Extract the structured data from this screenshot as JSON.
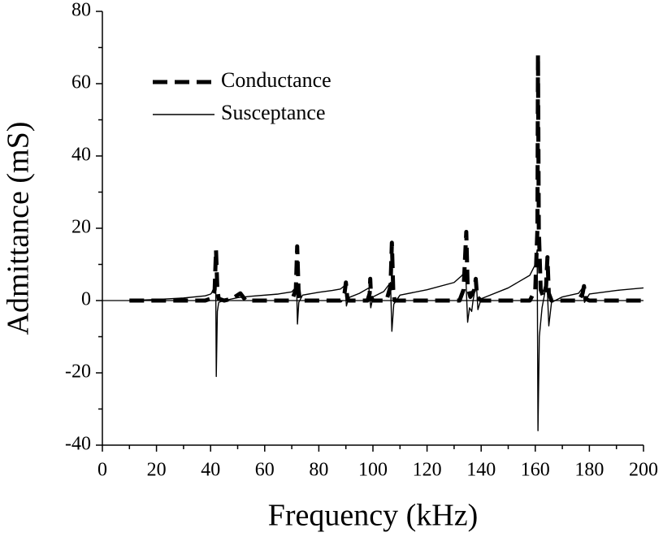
{
  "chart_data": {
    "type": "line",
    "x_label": "Frequency (kHz)",
    "y_label": "Admittance (mS)",
    "xlim": [
      0,
      200
    ],
    "xticks": [
      0,
      20,
      40,
      60,
      80,
      100,
      120,
      140,
      160,
      180,
      200
    ],
    "ylim": [
      -40,
      80
    ],
    "yticks": [
      -40,
      -20,
      0,
      20,
      40,
      60,
      80
    ],
    "legend": "upper left",
    "series": [
      {
        "name": "Conductance",
        "color": "#000000",
        "style": "dashed",
        "x": [
          10,
          38,
          40,
          41.5,
          42,
          42.5,
          43,
          45,
          48,
          51,
          53,
          70,
          71.5,
          72,
          72.5,
          73,
          88,
          89.5,
          90,
          90.5,
          91,
          98,
          98.8,
          99,
          99.3,
          100,
          105,
          106.5,
          107,
          107.5,
          108,
          132,
          133.5,
          134.5,
          135,
          136,
          137.5,
          138,
          138.5,
          140,
          158,
          160,
          160.8,
          161,
          161.3,
          162,
          163,
          164,
          164.5,
          165,
          166,
          176,
          177.5,
          178,
          178.5,
          180,
          200
        ],
        "values": [
          0,
          0,
          0.5,
          3,
          14,
          3,
          0.5,
          0,
          0.5,
          2,
          0,
          0,
          3,
          15,
          3,
          0,
          0,
          2,
          5,
          1,
          0,
          0,
          2,
          6,
          1,
          0,
          0,
          4,
          16,
          3,
          0,
          0,
          3,
          19,
          4,
          1,
          3,
          6,
          1,
          0,
          0,
          3,
          20,
          68,
          20,
          3,
          1,
          4,
          12,
          2,
          0,
          0,
          2,
          4,
          0.5,
          0,
          0
        ]
      },
      {
        "name": "Susceptance",
        "color": "#000000",
        "style": "solid",
        "x": [
          10,
          20,
          30,
          38,
          40,
          41.5,
          41.9,
          42.1,
          42.5,
          43,
          45,
          50,
          55,
          65,
          70,
          71.3,
          71.8,
          72.1,
          72.6,
          74,
          80,
          85,
          88,
          89.7,
          90.2,
          91,
          95,
          98.5,
          99.2,
          100,
          104,
          106.5,
          107,
          107.7,
          110,
          120,
          130,
          133,
          134.2,
          135,
          135.7,
          136.5,
          137,
          138.2,
          138.8,
          140,
          150,
          158,
          160,
          160.7,
          161,
          161.5,
          162.5,
          163.5,
          164.3,
          165,
          166,
          170,
          176,
          177.5,
          178.2,
          180,
          190,
          200
        ],
        "values": [
          0,
          0.3,
          0.7,
          1.3,
          1.8,
          3,
          5,
          -21,
          -3,
          -0.5,
          0,
          0.8,
          1.2,
          1.8,
          2.4,
          3.5,
          4,
          -6.5,
          -0.5,
          1.5,
          2.3,
          2.8,
          3.2,
          4.2,
          -1.5,
          0.8,
          2,
          3.5,
          -2,
          1,
          2.5,
          5,
          -8.5,
          -1,
          1.5,
          3,
          5,
          7,
          9,
          -6,
          -2,
          -3,
          0,
          5,
          -2.5,
          0.5,
          3.5,
          7,
          10,
          14,
          -36,
          -10,
          -2,
          2,
          6,
          -7,
          -0.5,
          1,
          2,
          3.5,
          -0.5,
          1.8,
          2.8,
          3.5
        ]
      }
    ]
  }
}
